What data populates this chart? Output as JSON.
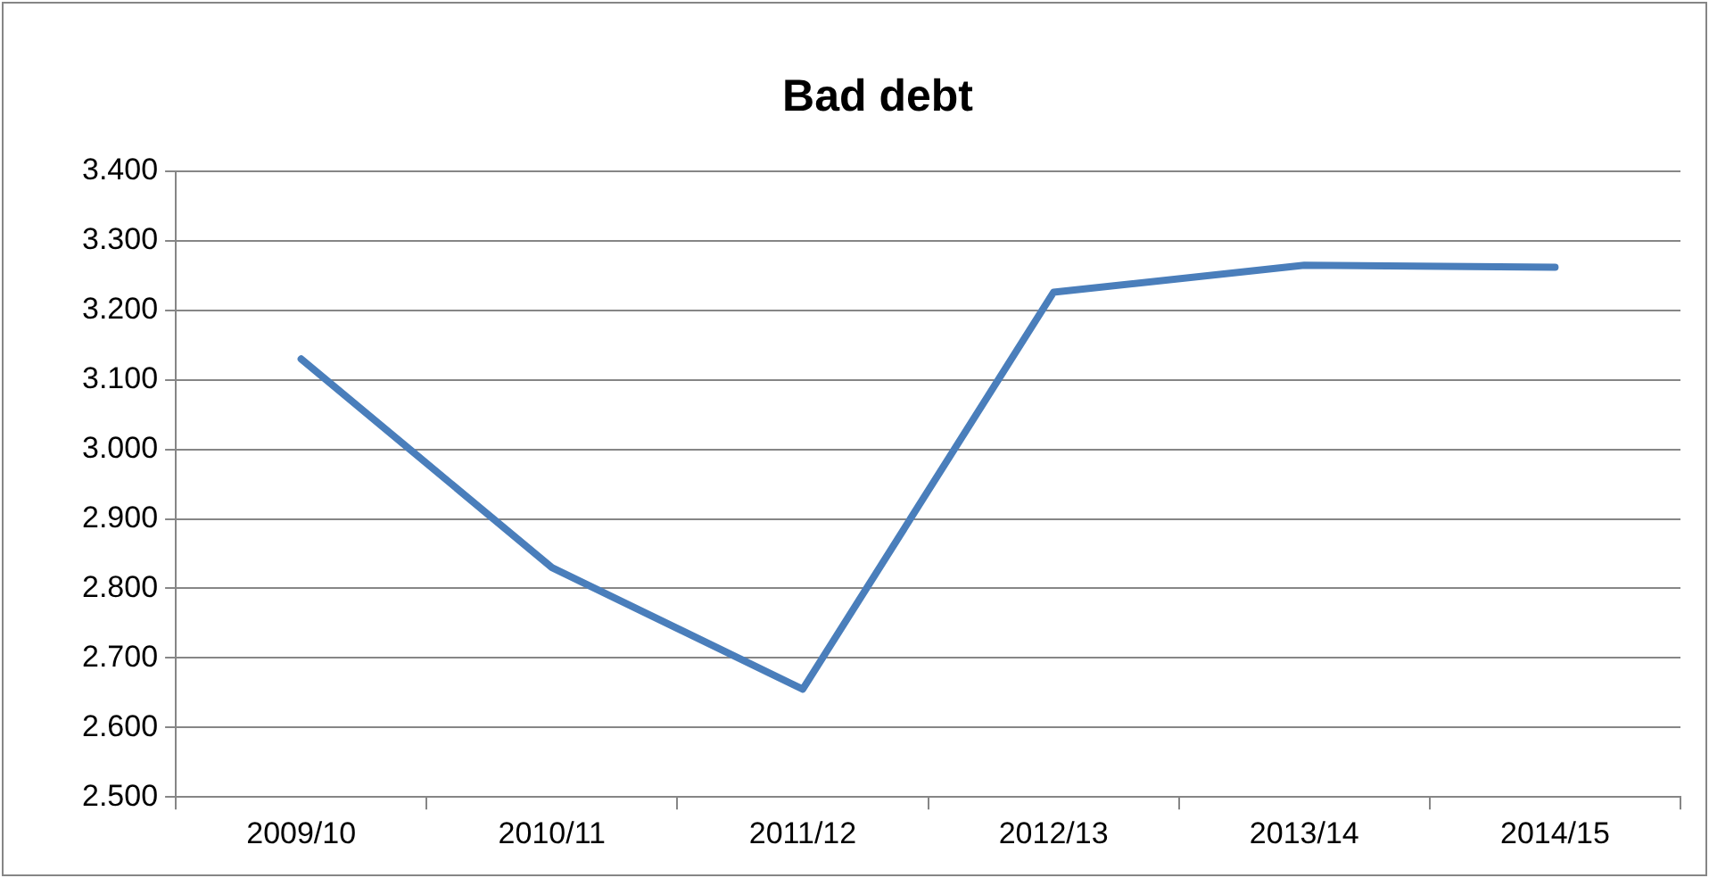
{
  "chart_data": {
    "type": "line",
    "title": "Bad debt",
    "categories": [
      "2009/10",
      "2010/11",
      "2011/12",
      "2012/13",
      "2013/14",
      "2014/15"
    ],
    "series": [
      {
        "color": "#4a7ebb",
        "values": [
          3.13,
          2.83,
          2.655,
          3.226,
          3.265,
          3.262
        ]
      }
    ],
    "ylim": [
      2.5,
      3.4
    ],
    "yticks": [
      {
        "value": 2.5,
        "label": "2.500"
      },
      {
        "value": 2.6,
        "label": "2.600"
      },
      {
        "value": 2.7,
        "label": "2.700"
      },
      {
        "value": 2.8,
        "label": "2.800"
      },
      {
        "value": 2.9,
        "label": "2.900"
      },
      {
        "value": 3.0,
        "label": "3.000"
      },
      {
        "value": 3.1,
        "label": "3.100"
      },
      {
        "value": 3.2,
        "label": "3.200"
      },
      {
        "value": 3.3,
        "label": "3.300"
      },
      {
        "value": 3.4,
        "label": "3.400"
      }
    ],
    "grid": "y",
    "legend": false,
    "marker": "none",
    "line_style": "solid"
  }
}
